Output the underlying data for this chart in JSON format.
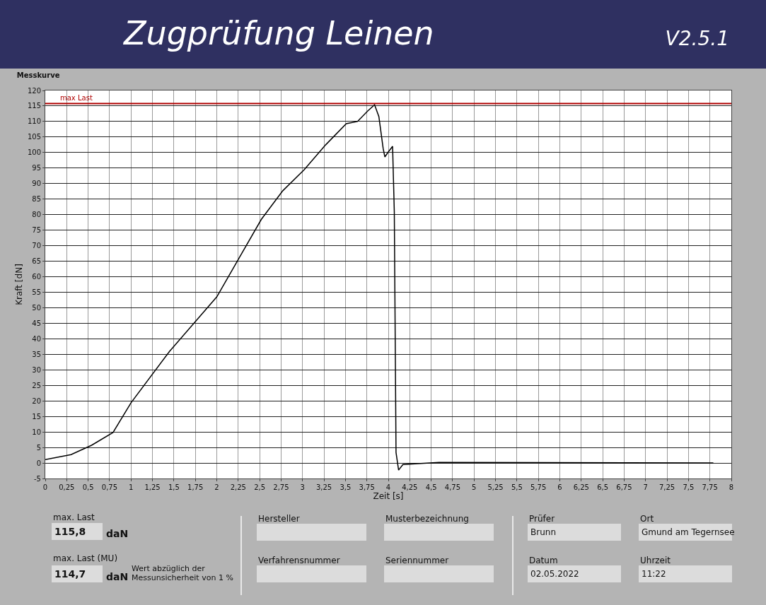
{
  "chart_data": [
    {
      "type": "other",
      "title": "Zugprüfung Leinen",
      "subtitle": "V2.5.1"
    },
    {
      "type": "line",
      "title": "Messkurve",
      "xlabel": "Zeit [s]",
      "ylabel": "Kraft [dN]",
      "series": [
        {
          "color": "#000000",
          "x": [
            0,
            0.3,
            0.54,
            0.79,
            1.0,
            1.45,
            2.0,
            2.28,
            2.52,
            2.77,
            3.02,
            3.27,
            3.51,
            3.64,
            3.76,
            3.84,
            3.89,
            3.94,
            3.96,
            4.0,
            4.05,
            4.07,
            4.09,
            4.12,
            4.17,
            4.59,
            7.79
          ],
          "values": [
            1.1,
            2.7,
            5.7,
            9.8,
            19.4,
            36,
            53.5,
            67,
            78.5,
            87.7,
            94.5,
            102.5,
            109.3,
            110,
            113.4,
            115.4,
            111.6,
            101.3,
            98.6,
            100.2,
            102,
            80.8,
            3.4,
            -2.3,
            -0.5,
            0.2,
            0
          ]
        }
      ],
      "ref_lines": [
        {
          "axis": "y",
          "value": 115.8,
          "label": "max Last",
          "color": "#b00000"
        }
      ],
      "xlim": [
        0,
        8
      ],
      "ylim": [
        -5,
        120
      ],
      "xticks": [
        0,
        {
          "value": 0.25,
          "label": "0,25"
        },
        {
          "value": 0.5,
          "label": "0,5"
        },
        {
          "value": 0.75,
          "label": "0,75"
        },
        1,
        {
          "value": 1.25,
          "label": "1,25"
        },
        {
          "value": 1.5,
          "label": "1,5"
        },
        {
          "value": 1.75,
          "label": "1,75"
        },
        2,
        {
          "value": 2.25,
          "label": "2,25"
        },
        {
          "value": 2.5,
          "label": "2,5"
        },
        {
          "value": 2.75,
          "label": "2,75"
        },
        3,
        {
          "value": 3.25,
          "label": "3,25"
        },
        {
          "value": 3.5,
          "label": "3,5"
        },
        {
          "value": 3.75,
          "label": "3,75"
        },
        4,
        {
          "value": 4.25,
          "label": "4,25"
        },
        {
          "value": 4.5,
          "label": "4,5"
        },
        {
          "value": 4.75,
          "label": "4,75"
        },
        5,
        {
          "value": 5.25,
          "label": "5,25"
        },
        {
          "value": 5.5,
          "label": "5,5"
        },
        {
          "value": 5.75,
          "label": "5,75"
        },
        6,
        {
          "value": 6.25,
          "label": "6,25"
        },
        {
          "value": 6.5,
          "label": "6,5"
        },
        {
          "value": 6.75,
          "label": "6,75"
        },
        7,
        {
          "value": 7.25,
          "label": "7,25"
        },
        {
          "value": 7.5,
          "label": "7,5"
        },
        {
          "value": 7.75,
          "label": "7,75"
        },
        8
      ],
      "yticks": [
        -5,
        0,
        5,
        10,
        15,
        20,
        25,
        30,
        35,
        40,
        45,
        50,
        55,
        60,
        65,
        70,
        75,
        80,
        85,
        90,
        95,
        100,
        105,
        110,
        115,
        120
      ],
      "grid": true,
      "marker": "none",
      "line_style": "solid"
    },
    {
      "type": "other",
      "annotations": [
        "max. Last",
        "115,8",
        "daN",
        "max. Last (MU)",
        "114,7",
        "daN",
        "Wert abzüglich der\nMessunsicherheit von 1 %",
        "Hersteller",
        "Musterbezeichnung",
        "Verfahrensnummer",
        "Seriennummer",
        "Prüfer",
        "Brunn",
        "Ort",
        "Gmund am Tegernsee",
        "Datum",
        "02.05.2022",
        "Uhrzeit",
        "11:22"
      ]
    }
  ]
}
